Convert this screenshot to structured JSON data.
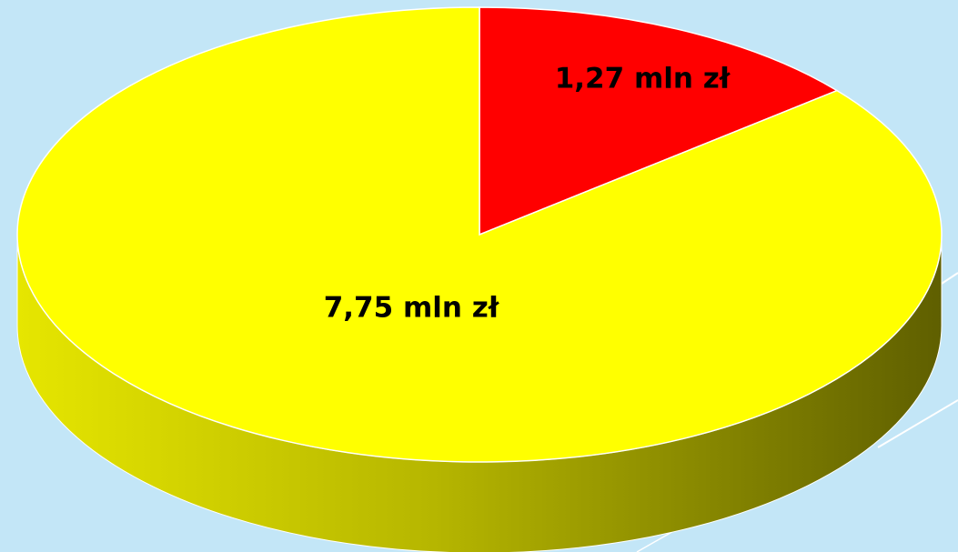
{
  "chart_data": {
    "type": "pie",
    "style": "3d",
    "slices": [
      {
        "label": "1,27 mln zł",
        "value": 1.27,
        "color": "#ff0000"
      },
      {
        "label": "7,75 mln zł",
        "value": 7.75,
        "color": "#ffff00"
      }
    ],
    "title": "",
    "legend": "none"
  },
  "colors": {
    "background": "#c3e6f7",
    "slice_small": "#ff0000",
    "slice_large": "#ffff00",
    "edge_light": "#f2f2a0",
    "edge_dark": "#5f5f00"
  }
}
